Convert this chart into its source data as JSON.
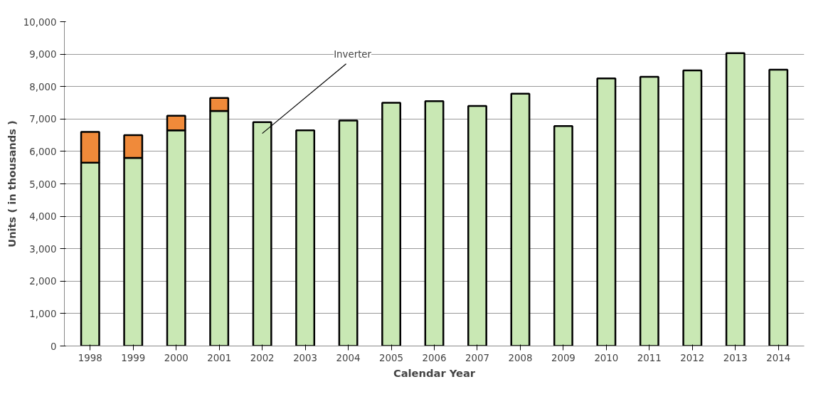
{
  "chart_data": {
    "type": "bar",
    "stacked": true,
    "xlabel": "Calendar Year",
    "ylabel": "Units ( in thousands )",
    "categories": [
      "1998",
      "1999",
      "2000",
      "2001",
      "2002",
      "2003",
      "2004",
      "2005",
      "2006",
      "2007",
      "2008",
      "2009",
      "2010",
      "2011",
      "2012",
      "2013",
      "2014"
    ],
    "series": [
      {
        "name": "Inverter",
        "color": "#c9e8b4",
        "values": [
          5650,
          5800,
          6650,
          7250,
          6900,
          6650,
          6950,
          7500,
          7550,
          7400,
          7780,
          6780,
          8250,
          8300,
          8500,
          9030,
          8520
        ]
      },
      {
        "color": "#f08a3a",
        "values": [
          950,
          700,
          450,
          400,
          null,
          null,
          null,
          null,
          null,
          null,
          null,
          null,
          null,
          null,
          null,
          null,
          null
        ]
      }
    ],
    "ylim": [
      0,
      10000
    ],
    "yticks": [
      0,
      {
        "value": 1000,
        "label": "1,000"
      },
      {
        "value": 2000,
        "label": "2,000"
      },
      {
        "value": 3000,
        "label": "3,000"
      },
      {
        "value": 4000,
        "label": "4,000"
      },
      {
        "value": 5000,
        "label": "5,000"
      },
      {
        "value": 6000,
        "label": "6,000"
      },
      {
        "value": 7000,
        "label": "7,000"
      },
      {
        "value": 8000,
        "label": "8,000"
      },
      {
        "value": 9000,
        "label": "9,000"
      },
      {
        "value": 10000,
        "label": "10,000"
      }
    ],
    "grid": "y",
    "legend": false
  }
}
